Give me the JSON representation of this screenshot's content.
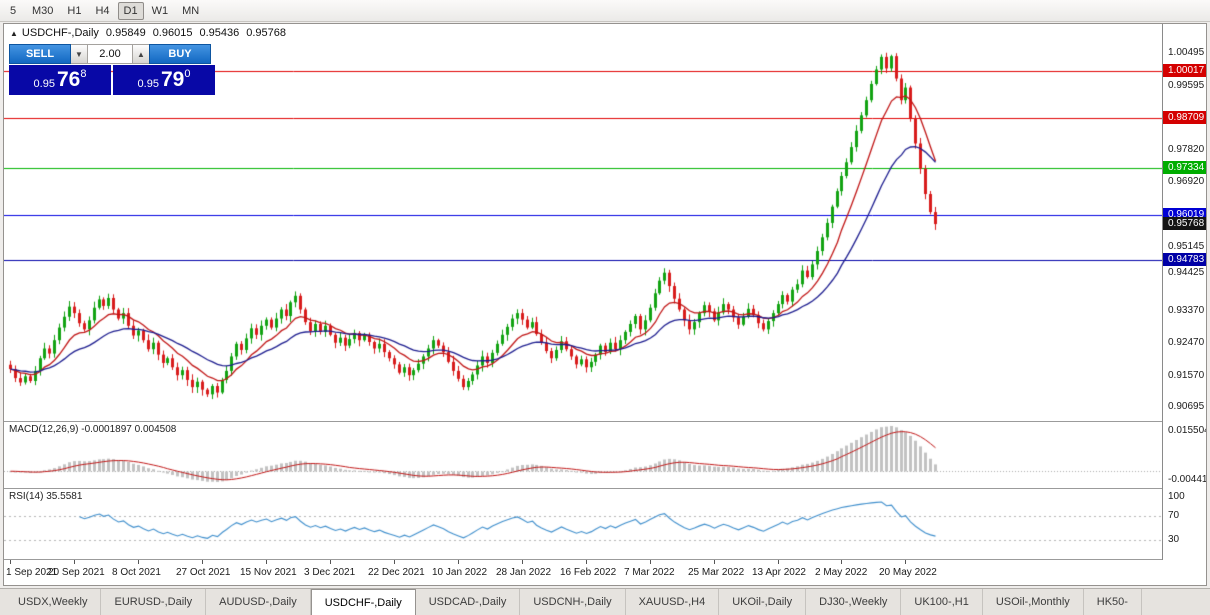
{
  "toolbar": {
    "timeframes": [
      {
        "label": "5",
        "active": false
      },
      {
        "label": "M30",
        "active": false
      },
      {
        "label": "H1",
        "active": false
      },
      {
        "label": "H4",
        "active": false
      },
      {
        "label": "D1",
        "active": true
      },
      {
        "label": "W1",
        "active": false
      },
      {
        "label": "MN",
        "active": false
      }
    ]
  },
  "chart_header": {
    "toggle_icon": "▲",
    "title": "USDCHF-,Daily",
    "open": "0.95849",
    "high": "0.96015",
    "low": "0.95436",
    "close": "0.95768"
  },
  "trade_panel": {
    "sell_label": "SELL",
    "buy_label": "BUY",
    "volume": "2.00",
    "spin_down_icon": "▼",
    "spin_up_icon": "▲",
    "sell_price": {
      "prefix": "0.95",
      "big": "76",
      "sup": "8"
    },
    "buy_price": {
      "prefix": "0.95",
      "big": "79",
      "sup": "0"
    }
  },
  "price_axis": {
    "ticks": [
      "1.00495",
      "0.99595",
      "0.97820",
      "0.96920",
      "0.95145",
      "0.94425",
      "0.93370",
      "0.92470",
      "0.91570",
      "0.90695"
    ],
    "badges": [
      {
        "value": "1.00017",
        "bg": "#d40000"
      },
      {
        "value": "0.98709",
        "bg": "#d40000"
      },
      {
        "value": "0.97334",
        "bg": "#00ad00"
      },
      {
        "value": "0.96019",
        "bg": "#0000d4"
      },
      {
        "value": "0.95768",
        "bg": "#141414"
      },
      {
        "value": "0.94783",
        "bg": "#0000a6"
      }
    ]
  },
  "macd_panel": {
    "label": "MACD(12,26,9) -0.0001897 0.004508",
    "axis_top": "0.0155040",
    "axis_bottom": "-0.0044118"
  },
  "rsi_panel": {
    "label": "RSI(14) 35.5581",
    "axis": [
      {
        "v": 100,
        "t": "100"
      },
      {
        "v": 70,
        "t": "70"
      },
      {
        "v": 30,
        "t": "30"
      }
    ]
  },
  "x_axis": {
    "labels": [
      {
        "i": 0,
        "t": "1 Sep 2021"
      },
      {
        "i": 13,
        "t": "20 Sep 2021"
      },
      {
        "i": 26,
        "t": "8 Oct 2021"
      },
      {
        "i": 39,
        "t": "27 Oct 2021"
      },
      {
        "i": 52,
        "t": "15 Nov 2021"
      },
      {
        "i": 65,
        "t": "3 Dec 2021"
      },
      {
        "i": 78,
        "t": "22 Dec 2021"
      },
      {
        "i": 91,
        "t": "10 Jan 2022"
      },
      {
        "i": 104,
        "t": "28 Jan 2022"
      },
      {
        "i": 117,
        "t": "16 Feb 2022"
      },
      {
        "i": 130,
        "t": "7 Mar 2022"
      },
      {
        "i": 143,
        "t": "25 Mar 2022"
      },
      {
        "i": 156,
        "t": "13 Apr 2022"
      },
      {
        "i": 169,
        "t": "2 May 2022"
      },
      {
        "i": 182,
        "t": "20 May 2022"
      }
    ]
  },
  "bottom_tabs": [
    {
      "label": "USDX,Weekly",
      "active": false
    },
    {
      "label": "EURUSD-,Daily",
      "active": false
    },
    {
      "label": "AUDUSD-,Daily",
      "active": false
    },
    {
      "label": "USDCHF-,Daily",
      "active": true
    },
    {
      "label": "USDCAD-,Daily",
      "active": false
    },
    {
      "label": "USDCNH-,Daily",
      "active": false
    },
    {
      "label": "XAUUSD-,H4",
      "active": false
    },
    {
      "label": "UKOil-,Daily",
      "active": false
    },
    {
      "label": "DJ30-,Weekly",
      "active": false
    },
    {
      "label": "UK100-,H1",
      "active": false
    },
    {
      "label": "USOil-,Monthly",
      "active": false
    },
    {
      "label": "HK50-",
      "active": false
    }
  ],
  "chart_data": {
    "type": "candlestick",
    "symbol": "USDCHF-",
    "timeframe": "Daily",
    "scale": {
      "min": 0.9045,
      "max": 1.012
    },
    "up_color": "#12a312",
    "down_color": "#d81c1c",
    "ma_fast_period": 10,
    "ma_slow_period": 24,
    "ma_fast_color": "#c01515",
    "ma_slow_color": "#1d1d8f",
    "levels": [
      {
        "price": 1.00017,
        "color": "#e00000"
      },
      {
        "price": 0.98709,
        "color": "#e00000"
      },
      {
        "price": 0.97334,
        "color": "#00b400"
      },
      {
        "price": 0.96019,
        "color": "#0000e0"
      },
      {
        "price": 0.94783,
        "color": "#0000a8"
      }
    ],
    "macd": {
      "fast": 12,
      "slow": 26,
      "signal": 9,
      "hist_color": "#c2c2c2",
      "signal_color": "#c01515"
    },
    "rsi": {
      "period": 14,
      "color": "#3e8ecc",
      "levels": [
        70,
        30
      ]
    },
    "closes": [
      0.9175,
      0.915,
      0.9138,
      0.9155,
      0.9142,
      0.917,
      0.9205,
      0.9232,
      0.9218,
      0.9255,
      0.929,
      0.932,
      0.9348,
      0.933,
      0.9302,
      0.9285,
      0.931,
      0.9345,
      0.9368,
      0.935,
      0.9372,
      0.934,
      0.9315,
      0.933,
      0.9295,
      0.9268,
      0.9282,
      0.9255,
      0.923,
      0.9248,
      0.9215,
      0.9192,
      0.9205,
      0.918,
      0.9158,
      0.9172,
      0.9145,
      0.9125,
      0.914,
      0.9118,
      0.9105,
      0.9128,
      0.911,
      0.9145,
      0.917,
      0.921,
      0.9245,
      0.9228,
      0.926,
      0.9288,
      0.927,
      0.9295,
      0.9312,
      0.929,
      0.9315,
      0.934,
      0.9322,
      0.936,
      0.9378,
      0.934,
      0.9305,
      0.928,
      0.93,
      0.9278,
      0.9295,
      0.927,
      0.9248,
      0.9262,
      0.924,
      0.9258,
      0.9275,
      0.9255,
      0.927,
      0.925,
      0.9232,
      0.9245,
      0.9222,
      0.9205,
      0.9188,
      0.9165,
      0.918,
      0.9158,
      0.9172,
      0.919,
      0.921,
      0.9232,
      0.9255,
      0.924,
      0.9222,
      0.9195,
      0.917,
      0.9148,
      0.9125,
      0.9142,
      0.916,
      0.9185,
      0.921,
      0.9192,
      0.922,
      0.9245,
      0.927,
      0.9292,
      0.9315,
      0.933,
      0.9312,
      0.929,
      0.9305,
      0.9272,
      0.9248,
      0.9225,
      0.9205,
      0.9228,
      0.9252,
      0.923,
      0.921,
      0.9188,
      0.9202,
      0.918,
      0.9195,
      0.9215,
      0.924,
      0.9222,
      0.9248,
      0.923,
      0.9255,
      0.9278,
      0.93,
      0.9322,
      0.9285,
      0.931,
      0.9345,
      0.9385,
      0.942,
      0.9442,
      0.9405,
      0.937,
      0.934,
      0.931,
      0.9285,
      0.9305,
      0.933,
      0.9352,
      0.9335,
      0.931,
      0.9332,
      0.9355,
      0.934,
      0.9318,
      0.9298,
      0.932,
      0.9342,
      0.9325,
      0.9302,
      0.9285,
      0.9308,
      0.933,
      0.9355,
      0.938,
      0.9362,
      0.9395,
      0.941,
      0.9448,
      0.943,
      0.9465,
      0.9502,
      0.954,
      0.958,
      0.9625,
      0.9668,
      0.971,
      0.9748,
      0.979,
      0.9835,
      0.9878,
      0.992,
      0.9965,
      1.0005,
      1.004,
      1.0008,
      1.0042,
      0.998,
      0.992,
      0.9955,
      0.987,
      0.98,
      0.973,
      0.966,
      0.961,
      0.95768
    ]
  }
}
